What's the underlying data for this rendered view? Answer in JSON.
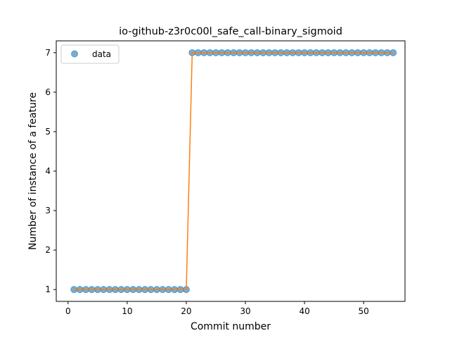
{
  "chart_data": {
    "type": "line",
    "title": "io-github-z3r0c00l_safe_call-binary_sigmoid",
    "xlabel": "Commit number",
    "ylabel": "Number of instance of a feature",
    "xlim": [
      -2,
      57
    ],
    "ylim": [
      0.7,
      7.3
    ],
    "xticks": [
      0,
      10,
      20,
      30,
      40,
      50
    ],
    "yticks": [
      1,
      2,
      3,
      4,
      5,
      6,
      7
    ],
    "grid": false,
    "legend": {
      "position": "top-left",
      "entries": [
        "data"
      ]
    },
    "series": [
      {
        "name": "data",
        "style": "markers",
        "color": "#1f77b4",
        "x": [
          1,
          2,
          3,
          4,
          5,
          6,
          7,
          8,
          9,
          10,
          11,
          12,
          13,
          14,
          15,
          16,
          17,
          18,
          19,
          20,
          21,
          22,
          23,
          24,
          25,
          26,
          27,
          28,
          29,
          30,
          31,
          32,
          33,
          34,
          35,
          36,
          37,
          38,
          39,
          40,
          41,
          42,
          43,
          44,
          45,
          46,
          47,
          48,
          49,
          50,
          51,
          52,
          53,
          54,
          55
        ],
        "y": [
          1,
          1,
          1,
          1,
          1,
          1,
          1,
          1,
          1,
          1,
          1,
          1,
          1,
          1,
          1,
          1,
          1,
          1,
          1,
          1,
          7,
          7,
          7,
          7,
          7,
          7,
          7,
          7,
          7,
          7,
          7,
          7,
          7,
          7,
          7,
          7,
          7,
          7,
          7,
          7,
          7,
          7,
          7,
          7,
          7,
          7,
          7,
          7,
          7,
          7,
          7,
          7,
          7,
          7,
          7
        ]
      },
      {
        "style": "line",
        "color": "#ff7f0e",
        "x": [
          1,
          2,
          3,
          4,
          5,
          6,
          7,
          8,
          9,
          10,
          11,
          12,
          13,
          14,
          15,
          16,
          17,
          18,
          19,
          20,
          21,
          22,
          23,
          24,
          25,
          26,
          27,
          28,
          29,
          30,
          31,
          32,
          33,
          34,
          35,
          36,
          37,
          38,
          39,
          40,
          41,
          42,
          43,
          44,
          45,
          46,
          47,
          48,
          49,
          50,
          51,
          52,
          53,
          54,
          55
        ],
        "y": [
          1,
          1,
          1,
          1,
          1,
          1,
          1,
          1,
          1,
          1,
          1,
          1,
          1,
          1,
          1,
          1,
          1,
          1,
          1,
          1,
          7,
          7,
          7,
          7,
          7,
          7,
          7,
          7,
          7,
          7,
          7,
          7,
          7,
          7,
          7,
          7,
          7,
          7,
          7,
          7,
          7,
          7,
          7,
          7,
          7,
          7,
          7,
          7,
          7,
          7,
          7,
          7,
          7,
          7,
          7
        ]
      }
    ]
  }
}
